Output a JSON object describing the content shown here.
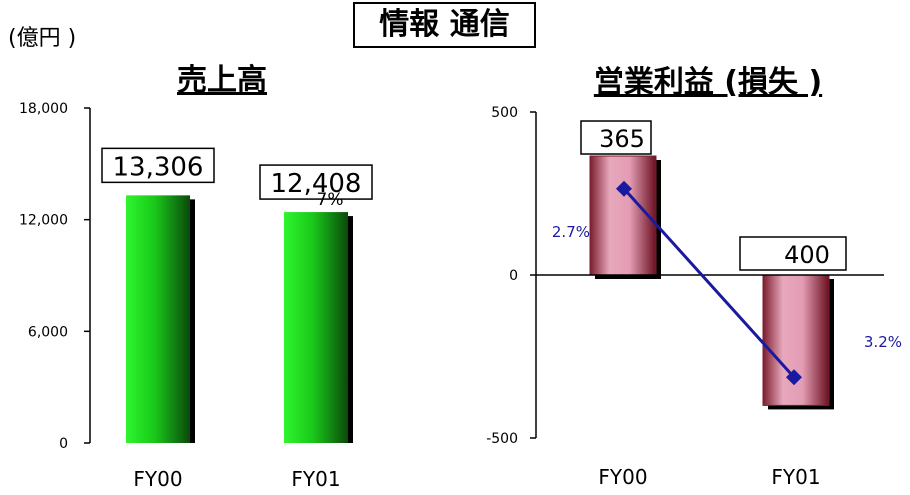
{
  "header": {
    "unit": "(億円 )",
    "title": "情報 通信"
  },
  "chart_data": [
    {
      "type": "bar",
      "title": "売上高",
      "categories": [
        "FY00",
        "FY01"
      ],
      "values": [
        13306,
        12408
      ],
      "value_labels": [
        "13,306",
        "12,408"
      ],
      "annotation": "7%",
      "ylim": [
        0,
        18000
      ],
      "yticks": [
        0,
        6000,
        12000,
        18000
      ],
      "ytick_labels": [
        "0",
        "6,000",
        "12,000",
        "18,000"
      ],
      "bar_color": "#1ee01e",
      "legend": "none"
    },
    {
      "type": "bar",
      "title": "営業利益 (損失 )",
      "categories": [
        "FY00",
        "FY01"
      ],
      "values": [
        365,
        -400
      ],
      "value_labels": [
        "365",
        "400"
      ],
      "ylim": [
        -500,
        500
      ],
      "yticks": [
        -500,
        0,
        500
      ],
      "ytick_labels": [
        "-500",
        "0",
        "500"
      ],
      "bar_color": "#e39cb4",
      "line_series": {
        "type": "line",
        "values": [
          2.7,
          -3.2
        ],
        "labels": [
          "2.7%",
          "3.2%"
        ],
        "color": "#1a1aa0"
      },
      "legend": "none"
    }
  ]
}
